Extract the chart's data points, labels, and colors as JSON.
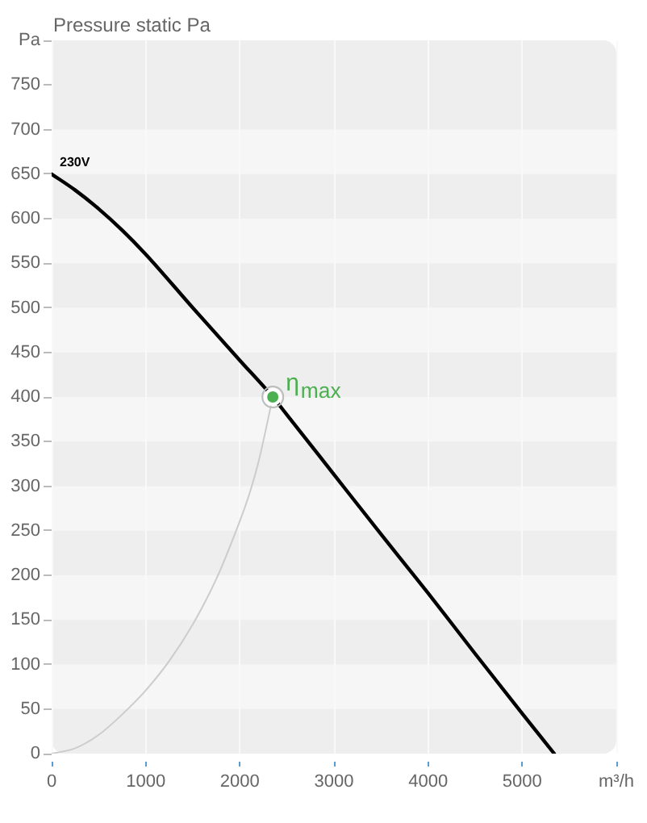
{
  "chart_data": {
    "type": "line",
    "title": "Pressure static Pa",
    "series": [
      {
        "name": "230V",
        "color": "#000000",
        "x": [
          0,
          250,
          500,
          750,
          1000,
          1500,
          2000,
          2350,
          2500,
          3000,
          3500,
          4000,
          4500,
          5000,
          5340
        ],
        "values": [
          650,
          632,
          611,
          587,
          560,
          500,
          441,
          400,
          380,
          313,
          246,
          180,
          112,
          45,
          0
        ]
      },
      {
        "color": "#cccccc",
        "x": [
          0,
          250,
          500,
          750,
          1000,
          1250,
          1500,
          1750,
          2000,
          2100,
          2200,
          2350
        ],
        "values": [
          0,
          6,
          21,
          44,
          71,
          104,
          145,
          196,
          261,
          291,
          328,
          400
        ]
      },
      {
        "type": "scatter",
        "name": "η$_{max}$",
        "color": "#4caf50",
        "marker": "circle",
        "x": [
          2350
        ],
        "values": [
          400
        ]
      }
    ],
    "xlim": [
      0,
      6000
    ],
    "xticks": [
      0,
      1000,
      2000,
      3000,
      4000,
      5000,
      {
        "value": 6000,
        "label": "m³/h"
      }
    ],
    "ylim": [
      0,
      800
    ],
    "yticks": [
      0,
      50,
      100,
      150,
      200,
      250,
      300,
      350,
      400,
      450,
      500,
      550,
      600,
      650,
      700,
      750,
      {
        "value": 800,
        "label": "Pa"
      }
    ],
    "bands": [
      {
        "axis": "y",
        "from": 50,
        "to": 100,
        "color": "#f6f6f6"
      },
      {
        "axis": "y",
        "from": 150,
        "to": 200,
        "color": "#f6f6f6"
      },
      {
        "axis": "y",
        "from": 250,
        "to": 300,
        "color": "#f6f6f6"
      },
      {
        "axis": "y",
        "from": 350,
        "to": 400,
        "color": "#f6f6f6"
      },
      {
        "axis": "y",
        "from": 450,
        "to": 500,
        "color": "#f6f6f6"
      },
      {
        "axis": "y",
        "from": 550,
        "to": 600,
        "color": "#f6f6f6"
      },
      {
        "axis": "y",
        "from": 650,
        "to": 700,
        "color": "#f6f6f6"
      }
    ],
    "grid": "x",
    "legend": false,
    "marker": "none"
  }
}
